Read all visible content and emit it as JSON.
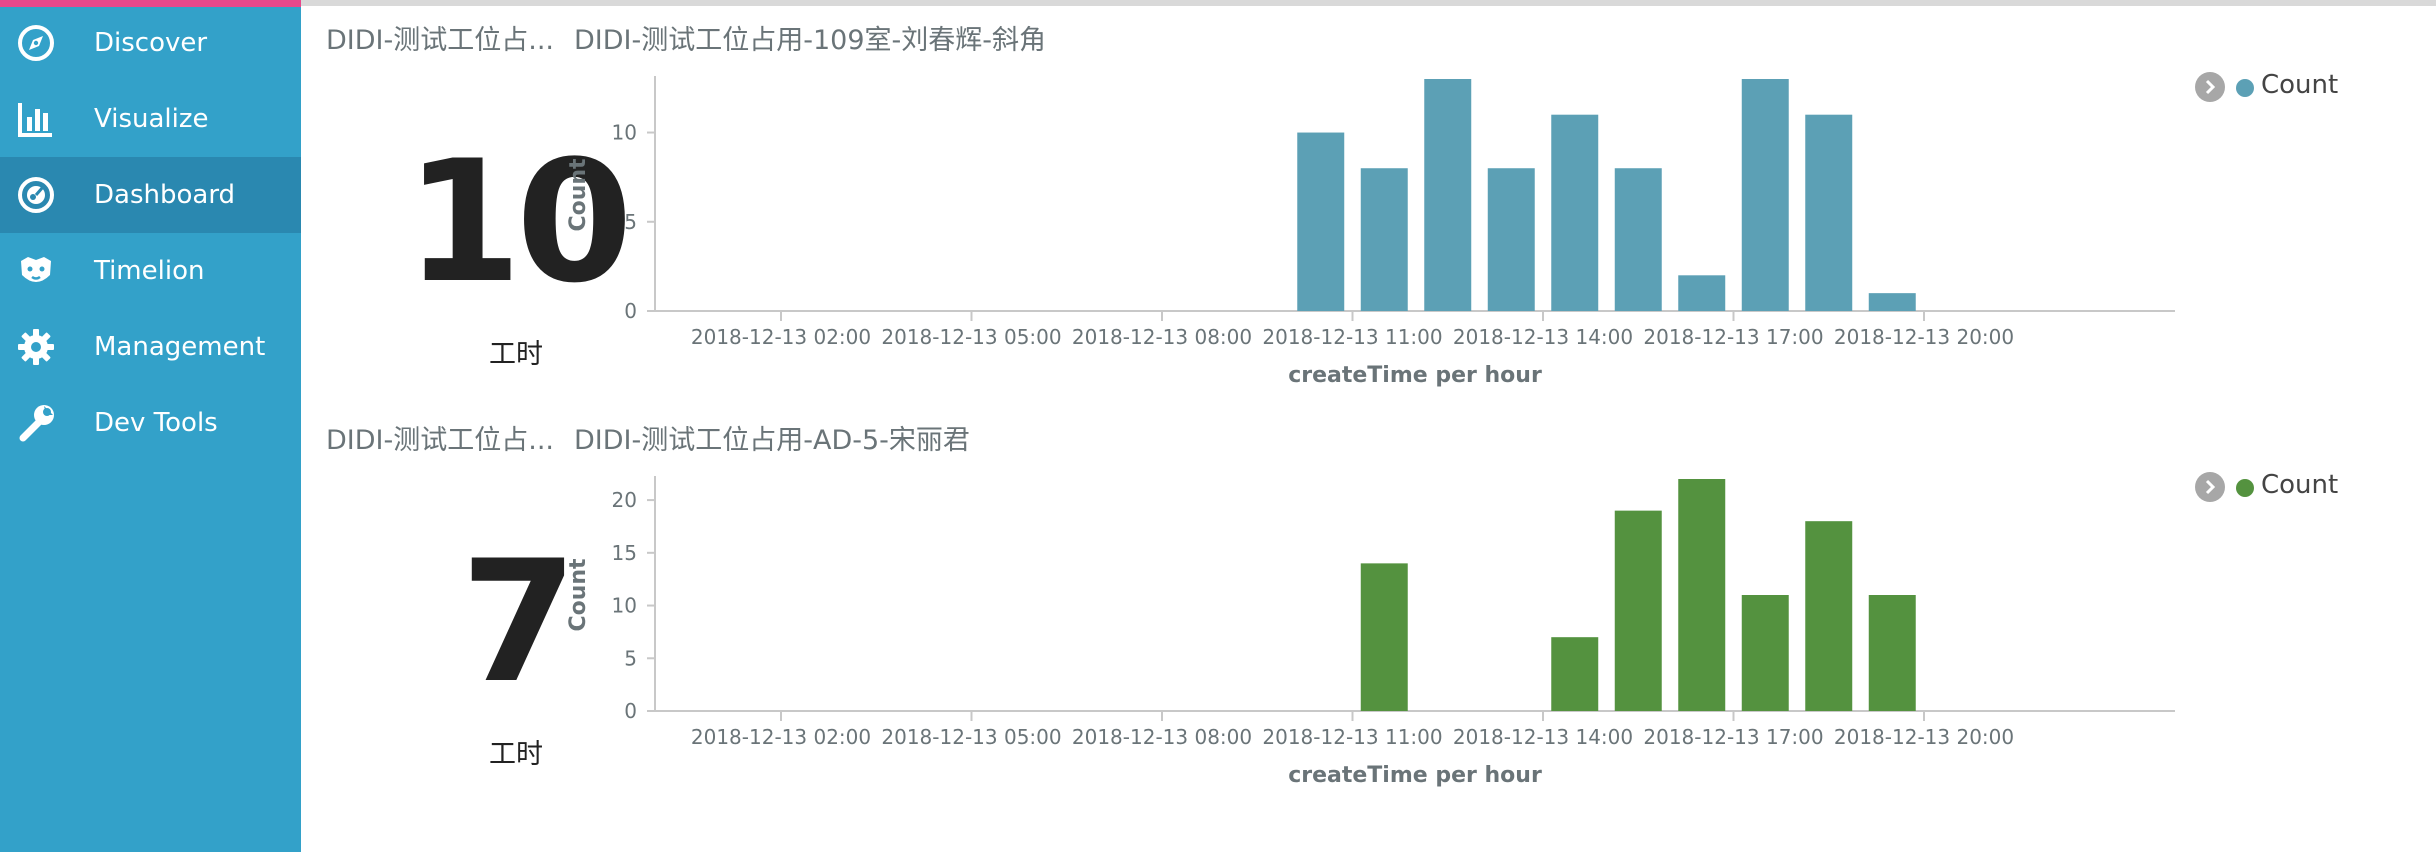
{
  "sidebar": {
    "items": [
      {
        "label": "Discover",
        "icon": "compass-icon",
        "active": false
      },
      {
        "label": "Visualize",
        "icon": "bar-chart-icon",
        "active": false
      },
      {
        "label": "Dashboard",
        "icon": "dashboard-gauge-icon",
        "active": true
      },
      {
        "label": "Timelion",
        "icon": "lion-icon",
        "active": false
      },
      {
        "label": "Management",
        "icon": "gear-icon",
        "active": false
      },
      {
        "label": "Dev Tools",
        "icon": "wrench-icon",
        "active": false
      }
    ],
    "accent_color": "#e8488b",
    "background_color": "#33a1c9",
    "active_color": "#2a88b0"
  },
  "panels": [
    {
      "metric_title": "DIDI-测试工位占...",
      "chart_title": "DIDI-测试工位占用-109室-刘春辉-斜角",
      "metric": {
        "value": "10",
        "label": "工时"
      },
      "legend_label": "Count",
      "color": "#5ca0b5"
    },
    {
      "metric_title": "DIDI-测试工位占...",
      "chart_title": "DIDI-测试工位占用-AD-5-宋丽君",
      "metric": {
        "value": "7",
        "label": "工时"
      },
      "legend_label": "Count",
      "color": "#54923f"
    }
  ],
  "chart_data": [
    {
      "type": "bar",
      "xlabel": "createTime per hour",
      "ylabel": "Count",
      "tick_labels": [
        "2018-12-13 02:00",
        "2018-12-13 05:00",
        "2018-12-13 08:00",
        "2018-12-13 11:00",
        "2018-12-13 14:00",
        "2018-12-13 17:00",
        "2018-12-13 20:00"
      ],
      "ylim": [
        0,
        13
      ],
      "yticks": [
        0,
        5,
        10
      ],
      "series": [
        {
          "name": "Count",
          "x": [
            "2018-12-13 10:00",
            "2018-12-13 11:00",
            "2018-12-13 12:00",
            "2018-12-13 13:00",
            "2018-12-13 14:00",
            "2018-12-13 15:00",
            "2018-12-13 16:00",
            "2018-12-13 17:00",
            "2018-12-13 18:00",
            "2018-12-13 19:00"
          ],
          "values": [
            10,
            8,
            13,
            8,
            11,
            8,
            2,
            13,
            11,
            1
          ]
        }
      ],
      "legend": "top-right",
      "grid": false
    },
    {
      "type": "bar",
      "xlabel": "createTime per hour",
      "ylabel": "Count",
      "tick_labels": [
        "2018-12-13 02:00",
        "2018-12-13 05:00",
        "2018-12-13 08:00",
        "2018-12-13 11:00",
        "2018-12-13 14:00",
        "2018-12-13 17:00",
        "2018-12-13 20:00"
      ],
      "ylim": [
        0,
        22
      ],
      "yticks": [
        0,
        5,
        10,
        15,
        20
      ],
      "series": [
        {
          "name": "Count",
          "x": [
            "2018-12-13 11:00",
            "2018-12-13 14:00",
            "2018-12-13 15:00",
            "2018-12-13 16:00",
            "2018-12-13 17:00",
            "2018-12-13 18:00",
            "2018-12-13 19:00"
          ],
          "values": [
            14,
            7,
            19,
            22,
            11,
            18,
            11
          ]
        }
      ],
      "legend": "top-right",
      "grid": false
    }
  ]
}
